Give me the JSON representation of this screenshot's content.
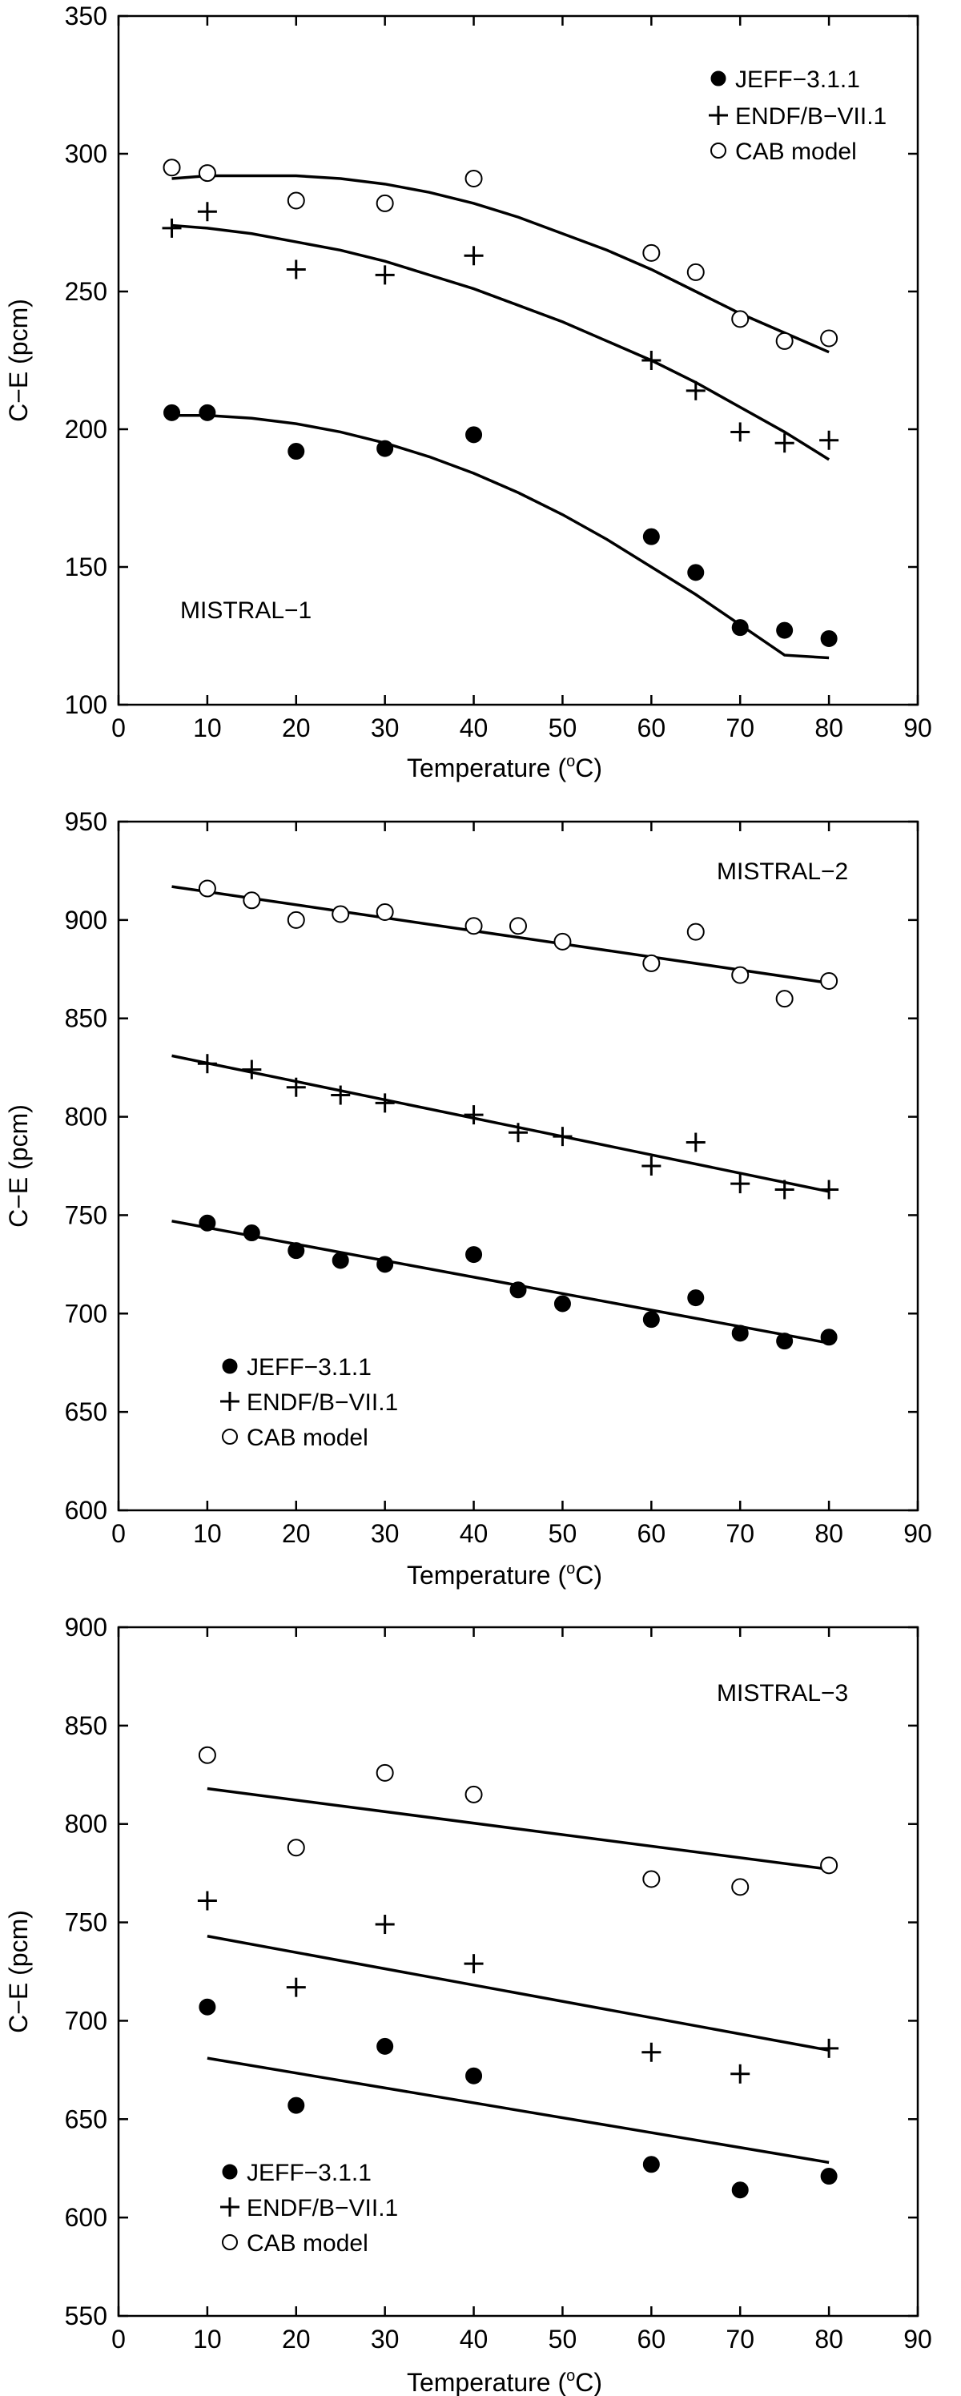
{
  "chart_data": [
    {
      "type": "scatter",
      "xlabel": "Temperature (",
      "xlabel_unit_sup": "o",
      "xlabel_unit_end": "C)",
      "ylabel": "C−E (pcm)",
      "xlim": [
        0,
        90
      ],
      "ylim": [
        100,
        350
      ],
      "xticks": [
        0,
        10,
        20,
        30,
        40,
        50,
        60,
        70,
        80,
        90
      ],
      "yticks": [
        100,
        150,
        200,
        250,
        300,
        350
      ],
      "annotation": "MISTRAL−1",
      "legend_position": "top-right",
      "series": [
        {
          "name": "JEFF−3.1.1",
          "marker": "filled-circle",
          "x": [
            6,
            10,
            20,
            30,
            40,
            60,
            65,
            70,
            75,
            80
          ],
          "y": [
            206,
            206,
            192,
            193,
            198,
            161,
            148,
            128,
            127,
            124
          ],
          "fit_x": [
            6,
            10,
            15,
            20,
            25,
            30,
            35,
            40,
            45,
            50,
            55,
            60,
            65,
            70,
            75,
            80
          ],
          "fit_y": [
            205,
            205,
            204,
            202,
            199,
            195,
            190,
            184,
            177,
            169,
            160,
            150,
            140,
            129,
            118,
            117
          ]
        },
        {
          "name": "ENDF/B−VII.1",
          "marker": "plus",
          "x": [
            6,
            10,
            20,
            30,
            40,
            60,
            65,
            70,
            75,
            80
          ],
          "y": [
            273,
            279,
            258,
            256,
            263,
            225,
            214,
            199,
            195,
            196
          ],
          "fit_x": [
            6,
            10,
            15,
            20,
            25,
            30,
            35,
            40,
            45,
            50,
            55,
            60,
            65,
            70,
            75,
            80
          ],
          "fit_y": [
            274,
            273,
            271,
            268,
            265,
            261,
            256,
            251,
            245,
            239,
            232,
            225,
            217,
            208,
            199,
            189
          ]
        },
        {
          "name": "CAB model",
          "marker": "open-circle",
          "x": [
            6,
            10,
            20,
            30,
            40,
            60,
            65,
            70,
            75,
            80
          ],
          "y": [
            295,
            293,
            283,
            282,
            291,
            264,
            257,
            240,
            232,
            233
          ],
          "fit_x": [
            6,
            10,
            15,
            20,
            25,
            30,
            35,
            40,
            45,
            50,
            55,
            60,
            65,
            70,
            75,
            80
          ],
          "fit_y": [
            291,
            292,
            292,
            292,
            291,
            289,
            286,
            282,
            277,
            271,
            265,
            258,
            250,
            242,
            235,
            228
          ]
        }
      ]
    },
    {
      "type": "scatter",
      "xlabel": "Temperature (",
      "xlabel_unit_sup": "o",
      "xlabel_unit_end": "C)",
      "ylabel": "C−E (pcm)",
      "xlim": [
        0,
        90
      ],
      "ylim": [
        600,
        950
      ],
      "xticks": [
        0,
        10,
        20,
        30,
        40,
        50,
        60,
        70,
        80,
        90
      ],
      "yticks": [
        600,
        650,
        700,
        750,
        800,
        850,
        900,
        950
      ],
      "annotation": "MISTRAL−2",
      "legend_position": "bottom-left",
      "series": [
        {
          "name": "JEFF−3.1.1",
          "marker": "filled-circle",
          "x": [
            10,
            15,
            20,
            25,
            30,
            40,
            45,
            50,
            60,
            65,
            70,
            75,
            80
          ],
          "y": [
            746,
            741,
            732,
            727,
            725,
            730,
            712,
            705,
            697,
            708,
            690,
            686,
            688
          ],
          "fit_x": [
            6,
            80
          ],
          "fit_y": [
            747,
            685
          ]
        },
        {
          "name": "ENDF/B−VII.1",
          "marker": "plus",
          "x": [
            10,
            15,
            20,
            25,
            30,
            40,
            45,
            50,
            60,
            65,
            70,
            75,
            80
          ],
          "y": [
            827,
            824,
            815,
            811,
            807,
            801,
            792,
            790,
            775,
            787,
            766,
            763,
            763
          ],
          "fit_x": [
            6,
            80
          ],
          "fit_y": [
            831,
            762
          ]
        },
        {
          "name": "CAB model",
          "marker": "open-circle",
          "x": [
            10,
            15,
            20,
            25,
            30,
            40,
            45,
            50,
            60,
            65,
            70,
            75,
            80
          ],
          "y": [
            916,
            910,
            900,
            903,
            904,
            897,
            897,
            889,
            878,
            894,
            872,
            860,
            869
          ],
          "fit_x": [
            6,
            80
          ],
          "fit_y": [
            917,
            868
          ]
        }
      ]
    },
    {
      "type": "scatter",
      "xlabel": "Temperature (",
      "xlabel_unit_sup": "o",
      "xlabel_unit_end": "C)",
      "ylabel": "C−E (pcm)",
      "xlim": [
        0,
        90
      ],
      "ylim": [
        550,
        900
      ],
      "xticks": [
        0,
        10,
        20,
        30,
        40,
        50,
        60,
        70,
        80,
        90
      ],
      "yticks": [
        550,
        600,
        650,
        700,
        750,
        800,
        850,
        900
      ],
      "annotation": "MISTRAL−3",
      "legend_position": "bottom-left",
      "series": [
        {
          "name": "JEFF−3.1.1",
          "marker": "filled-circle",
          "x": [
            10,
            20,
            30,
            40,
            60,
            70,
            80
          ],
          "y": [
            707,
            657,
            687,
            672,
            627,
            614,
            621
          ],
          "fit_x": [
            10,
            80
          ],
          "fit_y": [
            681,
            628
          ]
        },
        {
          "name": "ENDF/B−VII.1",
          "marker": "plus",
          "x": [
            10,
            20,
            30,
            40,
            60,
            70,
            80
          ],
          "y": [
            761,
            717,
            749,
            729,
            684,
            673,
            686
          ],
          "fit_x": [
            10,
            80
          ],
          "fit_y": [
            743,
            685
          ]
        },
        {
          "name": "CAB model",
          "marker": "open-circle",
          "x": [
            10,
            20,
            30,
            40,
            60,
            70,
            80
          ],
          "y": [
            835,
            788,
            826,
            815,
            772,
            768,
            779
          ],
          "fit_x": [
            10,
            80
          ],
          "fit_y": [
            818,
            777
          ]
        }
      ]
    }
  ]
}
